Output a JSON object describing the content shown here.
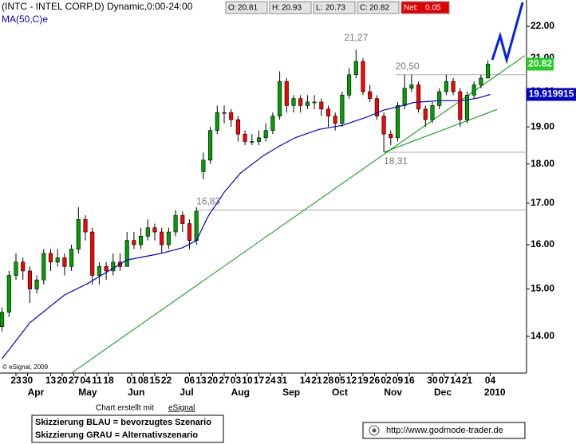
{
  "chart_data": {
    "type": "candlestick",
    "title": "(INTC - INTEL CORP,D) Dynamic,0:00-24:00",
    "quote": [
      {
        "label": "O:",
        "value": 20.81
      },
      {
        "label": "H:",
        "value": 20.93
      },
      {
        "label": "L:",
        "value": 20.73
      },
      {
        "label": "C:",
        "value": 20.82
      },
      {
        "label": "Net:",
        "value": 0.05
      }
    ],
    "log_scale": true,
    "up_color": "#00a000",
    "down_color": "#ff0000",
    "ylim": [
      13.27,
      22.86
    ],
    "yticks": [
      {
        "value": 14,
        "label": "14.00"
      },
      {
        "value": 15,
        "label": "15.00"
      },
      {
        "value": 16,
        "label": "16.00"
      },
      {
        "value": 17,
        "label": "17.00"
      },
      {
        "value": 18,
        "label": "18.00"
      },
      {
        "value": 19,
        "label": "19.00"
      },
      {
        "value": 20,
        "label": "20.00"
      },
      {
        "value": 21,
        "label": "21.00"
      },
      {
        "value": 22,
        "label": "22.00"
      }
    ],
    "xlim": [
      -6.9,
      220.7
    ],
    "xticks": [
      {
        "value": 0,
        "label": "23"
      },
      {
        "value": 5,
        "label": "30"
      },
      {
        "value": 15,
        "label": "13"
      },
      {
        "value": 20,
        "label": "20"
      },
      {
        "value": 25,
        "label": "27"
      },
      {
        "value": 30,
        "label": "04"
      },
      {
        "value": 35,
        "label": "11"
      },
      {
        "value": 40,
        "label": "18"
      },
      {
        "value": 50,
        "label": "01"
      },
      {
        "value": 55,
        "label": "08"
      },
      {
        "value": 60,
        "label": "15"
      },
      {
        "value": 65,
        "label": "22"
      },
      {
        "value": 75,
        "label": "06"
      },
      {
        "value": 80,
        "label": "13"
      },
      {
        "value": 85,
        "label": "20"
      },
      {
        "value": 90,
        "label": "27"
      },
      {
        "value": 95,
        "label": "03"
      },
      {
        "value": 100,
        "label": "10"
      },
      {
        "value": 105,
        "label": "17"
      },
      {
        "value": 110,
        "label": "24"
      },
      {
        "value": 115,
        "label": "31"
      },
      {
        "value": 125,
        "label": "14"
      },
      {
        "value": 130,
        "label": "21"
      },
      {
        "value": 135,
        "label": "28"
      },
      {
        "value": 140,
        "label": "05"
      },
      {
        "value": 145,
        "label": "12"
      },
      {
        "value": 150,
        "label": "19"
      },
      {
        "value": 155,
        "label": "26"
      },
      {
        "value": 160,
        "label": "02"
      },
      {
        "value": 165,
        "label": "09"
      },
      {
        "value": 170,
        "label": "16"
      },
      {
        "value": 180,
        "label": "30"
      },
      {
        "value": 185,
        "label": "07"
      },
      {
        "value": 190,
        "label": "14"
      },
      {
        "value": 195,
        "label": "21"
      },
      {
        "value": 205,
        "label": "04"
      }
    ],
    "month_ticks": [
      {
        "value": 8.6,
        "label": "Apr"
      },
      {
        "value": 31,
        "label": "May"
      },
      {
        "value": 52,
        "label": "Jun"
      },
      {
        "value": 73.8,
        "label": "Jul"
      },
      {
        "value": 97,
        "label": "Aug"
      },
      {
        "value": 119,
        "label": "Sep"
      },
      {
        "value": 140,
        "label": "Oct"
      },
      {
        "value": 163,
        "label": "Nov"
      },
      {
        "value": 184.5,
        "label": "Dec"
      },
      {
        "value": 207,
        "label": "2010"
      }
    ],
    "x": [
      -6,
      -3,
      0,
      3,
      6,
      9,
      12,
      15,
      18,
      21,
      24,
      27,
      30,
      33,
      36,
      39,
      42,
      45,
      48,
      51,
      54,
      57,
      60,
      63,
      66,
      69,
      72,
      75,
      78,
      81,
      84,
      87,
      90,
      93,
      96,
      99,
      102,
      105,
      108,
      111,
      114,
      117,
      120,
      123,
      126,
      129,
      132,
      135,
      138,
      141,
      144,
      147,
      150,
      153,
      156,
      159,
      162,
      165,
      168,
      171,
      174,
      177,
      180,
      183,
      186,
      189,
      192,
      195,
      198,
      201,
      204
    ],
    "open": [
      14.2,
      14.5,
      15.3,
      15.6,
      15.4,
      15.0,
      15.2,
      15.8,
      15.6,
      15.7,
      15.5,
      15.9,
      16.6,
      16.3,
      15.3,
      15.5,
      15.4,
      15.6,
      15.5,
      16.1,
      16.0,
      16.2,
      16.4,
      16.3,
      16.0,
      16.3,
      16.7,
      16.5,
      16.1,
      17.8,
      18.1,
      18.9,
      19.4,
      19.4,
      19.2,
      18.8,
      18.6,
      18.6,
      18.7,
      18.9,
      19.3,
      20.3,
      19.6,
      19.8,
      19.6,
      19.7,
      19.7,
      19.5,
      19.3,
      19.1,
      19.9,
      20.5,
      20.9,
      20.0,
      19.8,
      19.3,
      18.8,
      18.7,
      19.6,
      20.1,
      20.2,
      19.5,
      19.2,
      19.6,
      20.0,
      20.3,
      20.0,
      19.2,
      19.9,
      20.2,
      20.4
    ],
    "high": [
      14.6,
      15.4,
      15.8,
      15.7,
      15.5,
      15.3,
      15.9,
      15.9,
      15.9,
      15.8,
      16.0,
      16.9,
      16.7,
      16.4,
      15.6,
      15.6,
      15.8,
      15.8,
      16.3,
      16.3,
      16.4,
      16.6,
      16.5,
      16.4,
      16.4,
      16.83,
      16.8,
      16.6,
      16.9,
      18.3,
      19.0,
      19.6,
      19.6,
      19.5,
      19.3,
      18.9,
      18.8,
      18.9,
      19.1,
      19.4,
      20.6,
      20.4,
      19.9,
      19.9,
      19.9,
      19.9,
      19.8,
      19.6,
      19.4,
      20.0,
      20.7,
      21.27,
      21.0,
      20.2,
      19.9,
      19.4,
      18.9,
      19.7,
      20.5,
      20.5,
      20.3,
      19.6,
      19.7,
      20.1,
      20.5,
      20.4,
      20.1,
      20.0,
      20.3,
      20.5,
      20.93
    ],
    "low": [
      14.1,
      14.4,
      15.2,
      15.2,
      14.7,
      14.9,
      15.1,
      15.4,
      15.5,
      15.3,
      15.4,
      15.8,
      16.1,
      15.1,
      15.1,
      15.2,
      15.3,
      15.4,
      15.5,
      15.9,
      15.9,
      16.1,
      16.1,
      15.8,
      15.9,
      16.2,
      16.3,
      15.9,
      16.0,
      17.6,
      18.0,
      18.8,
      19.1,
      19.0,
      18.6,
      18.5,
      18.5,
      18.5,
      18.6,
      18.8,
      19.2,
      19.4,
      19.4,
      19.4,
      19.5,
      19.5,
      19.3,
      19.0,
      18.9,
      19.0,
      19.8,
      20.4,
      19.9,
      19.7,
      19.2,
      18.31,
      18.5,
      18.6,
      19.5,
      20.0,
      19.4,
      19.0,
      19.1,
      19.5,
      19.9,
      19.9,
      19.0,
      19.1,
      19.8,
      20.1,
      20.4
    ],
    "close": [
      14.5,
      15.3,
      15.6,
      15.4,
      15.0,
      15.2,
      15.8,
      15.6,
      15.7,
      15.5,
      15.9,
      16.6,
      16.3,
      15.3,
      15.5,
      15.4,
      15.6,
      15.5,
      16.1,
      16.0,
      16.2,
      16.4,
      16.3,
      16.0,
      16.3,
      16.7,
      16.5,
      16.1,
      16.8,
      18.1,
      18.9,
      19.4,
      19.4,
      19.2,
      18.8,
      18.6,
      18.6,
      18.7,
      18.9,
      19.3,
      20.3,
      19.6,
      19.8,
      19.6,
      19.7,
      19.7,
      19.5,
      19.3,
      19.1,
      19.9,
      20.5,
      20.9,
      20.0,
      19.8,
      19.3,
      18.8,
      18.7,
      19.6,
      20.1,
      20.2,
      19.5,
      19.2,
      19.6,
      20.0,
      20.3,
      20.0,
      19.2,
      19.9,
      20.2,
      20.4,
      20.82
    ],
    "price_label": 20.82,
    "series": [
      {
        "name": "MA(50,C)e",
        "color": "#0000cc",
        "x": [
          -6,
          6,
          21,
          31,
          48,
          62,
          72,
          78,
          83,
          90,
          97,
          107,
          114,
          121,
          131,
          141,
          152,
          159,
          166,
          172,
          183,
          193,
          200,
          205
        ],
        "values": [
          13.55,
          14.28,
          14.87,
          15.12,
          15.65,
          15.79,
          15.93,
          16.1,
          16.67,
          17.27,
          17.76,
          18.22,
          18.48,
          18.71,
          18.93,
          19.04,
          19.28,
          19.47,
          19.58,
          19.69,
          19.74,
          19.74,
          19.82,
          19.919915
        ],
        "last_label": 19.919915
      }
    ],
    "trendlines": [
      {
        "color": "#009900",
        "x": [
          24,
          220
        ],
        "y": [
          13.27,
          21.08
        ]
      },
      {
        "color": "#009900",
        "x": [
          159,
          208
        ],
        "y": [
          18.31,
          19.49
        ]
      }
    ],
    "scenario": {
      "color": "#0022ee",
      "x": [
        205.9,
        209.3,
        212.1,
        219
      ],
      "y": [
        20.95,
        21.7,
        20.95,
        22.78
      ]
    },
    "annotations": [
      {
        "label": "21,27",
        "value": 21.27,
        "x": 147,
        "line": false,
        "placement": "above"
      },
      {
        "label": "20,50",
        "value": 20.5,
        "x": 164,
        "line": true,
        "placement": "above"
      },
      {
        "label": "18,31",
        "value": 18.31,
        "x": 159,
        "line": true,
        "placement": "below"
      },
      {
        "label": "16,83",
        "value": 16.83,
        "x": 78,
        "line": true,
        "placement": "above"
      }
    ],
    "credit": "© eSignal, 2009",
    "made_with": "Chart erstellt mit",
    "made_with_link": "eSignal",
    "legend_lines": [
      "Skizzierung BLAU = bevorzugtes Szenario",
      "Skizzierung GRAU = Alternativszenario"
    ],
    "url": "http://www.godmode-trader.de"
  }
}
